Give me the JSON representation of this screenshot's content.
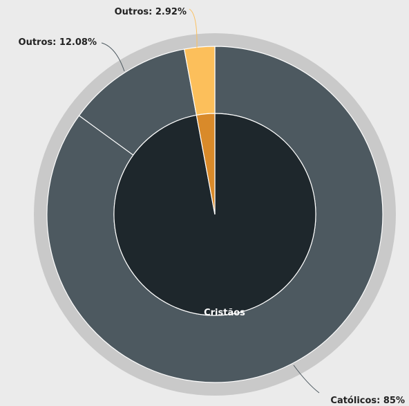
{
  "chart_data": {
    "type": "sunburst",
    "inner": {
      "categories": [
        "Cristãos",
        null
      ],
      "values": [
        97.08,
        2.92
      ],
      "colors": [
        "#1e272c",
        "#d98a2a"
      ]
    },
    "outer": {
      "categories": [
        "Católicos",
        "Outros",
        "Outros"
      ],
      "values": [
        85,
        12.08,
        2.92
      ],
      "value_labels": [
        "Católicos: 85%",
        "Outros: 12.08%",
        "Outros: 2.92%"
      ],
      "colors": [
        "#4d5960",
        "#4d5960",
        "#fcbf5b"
      ]
    }
  }
}
